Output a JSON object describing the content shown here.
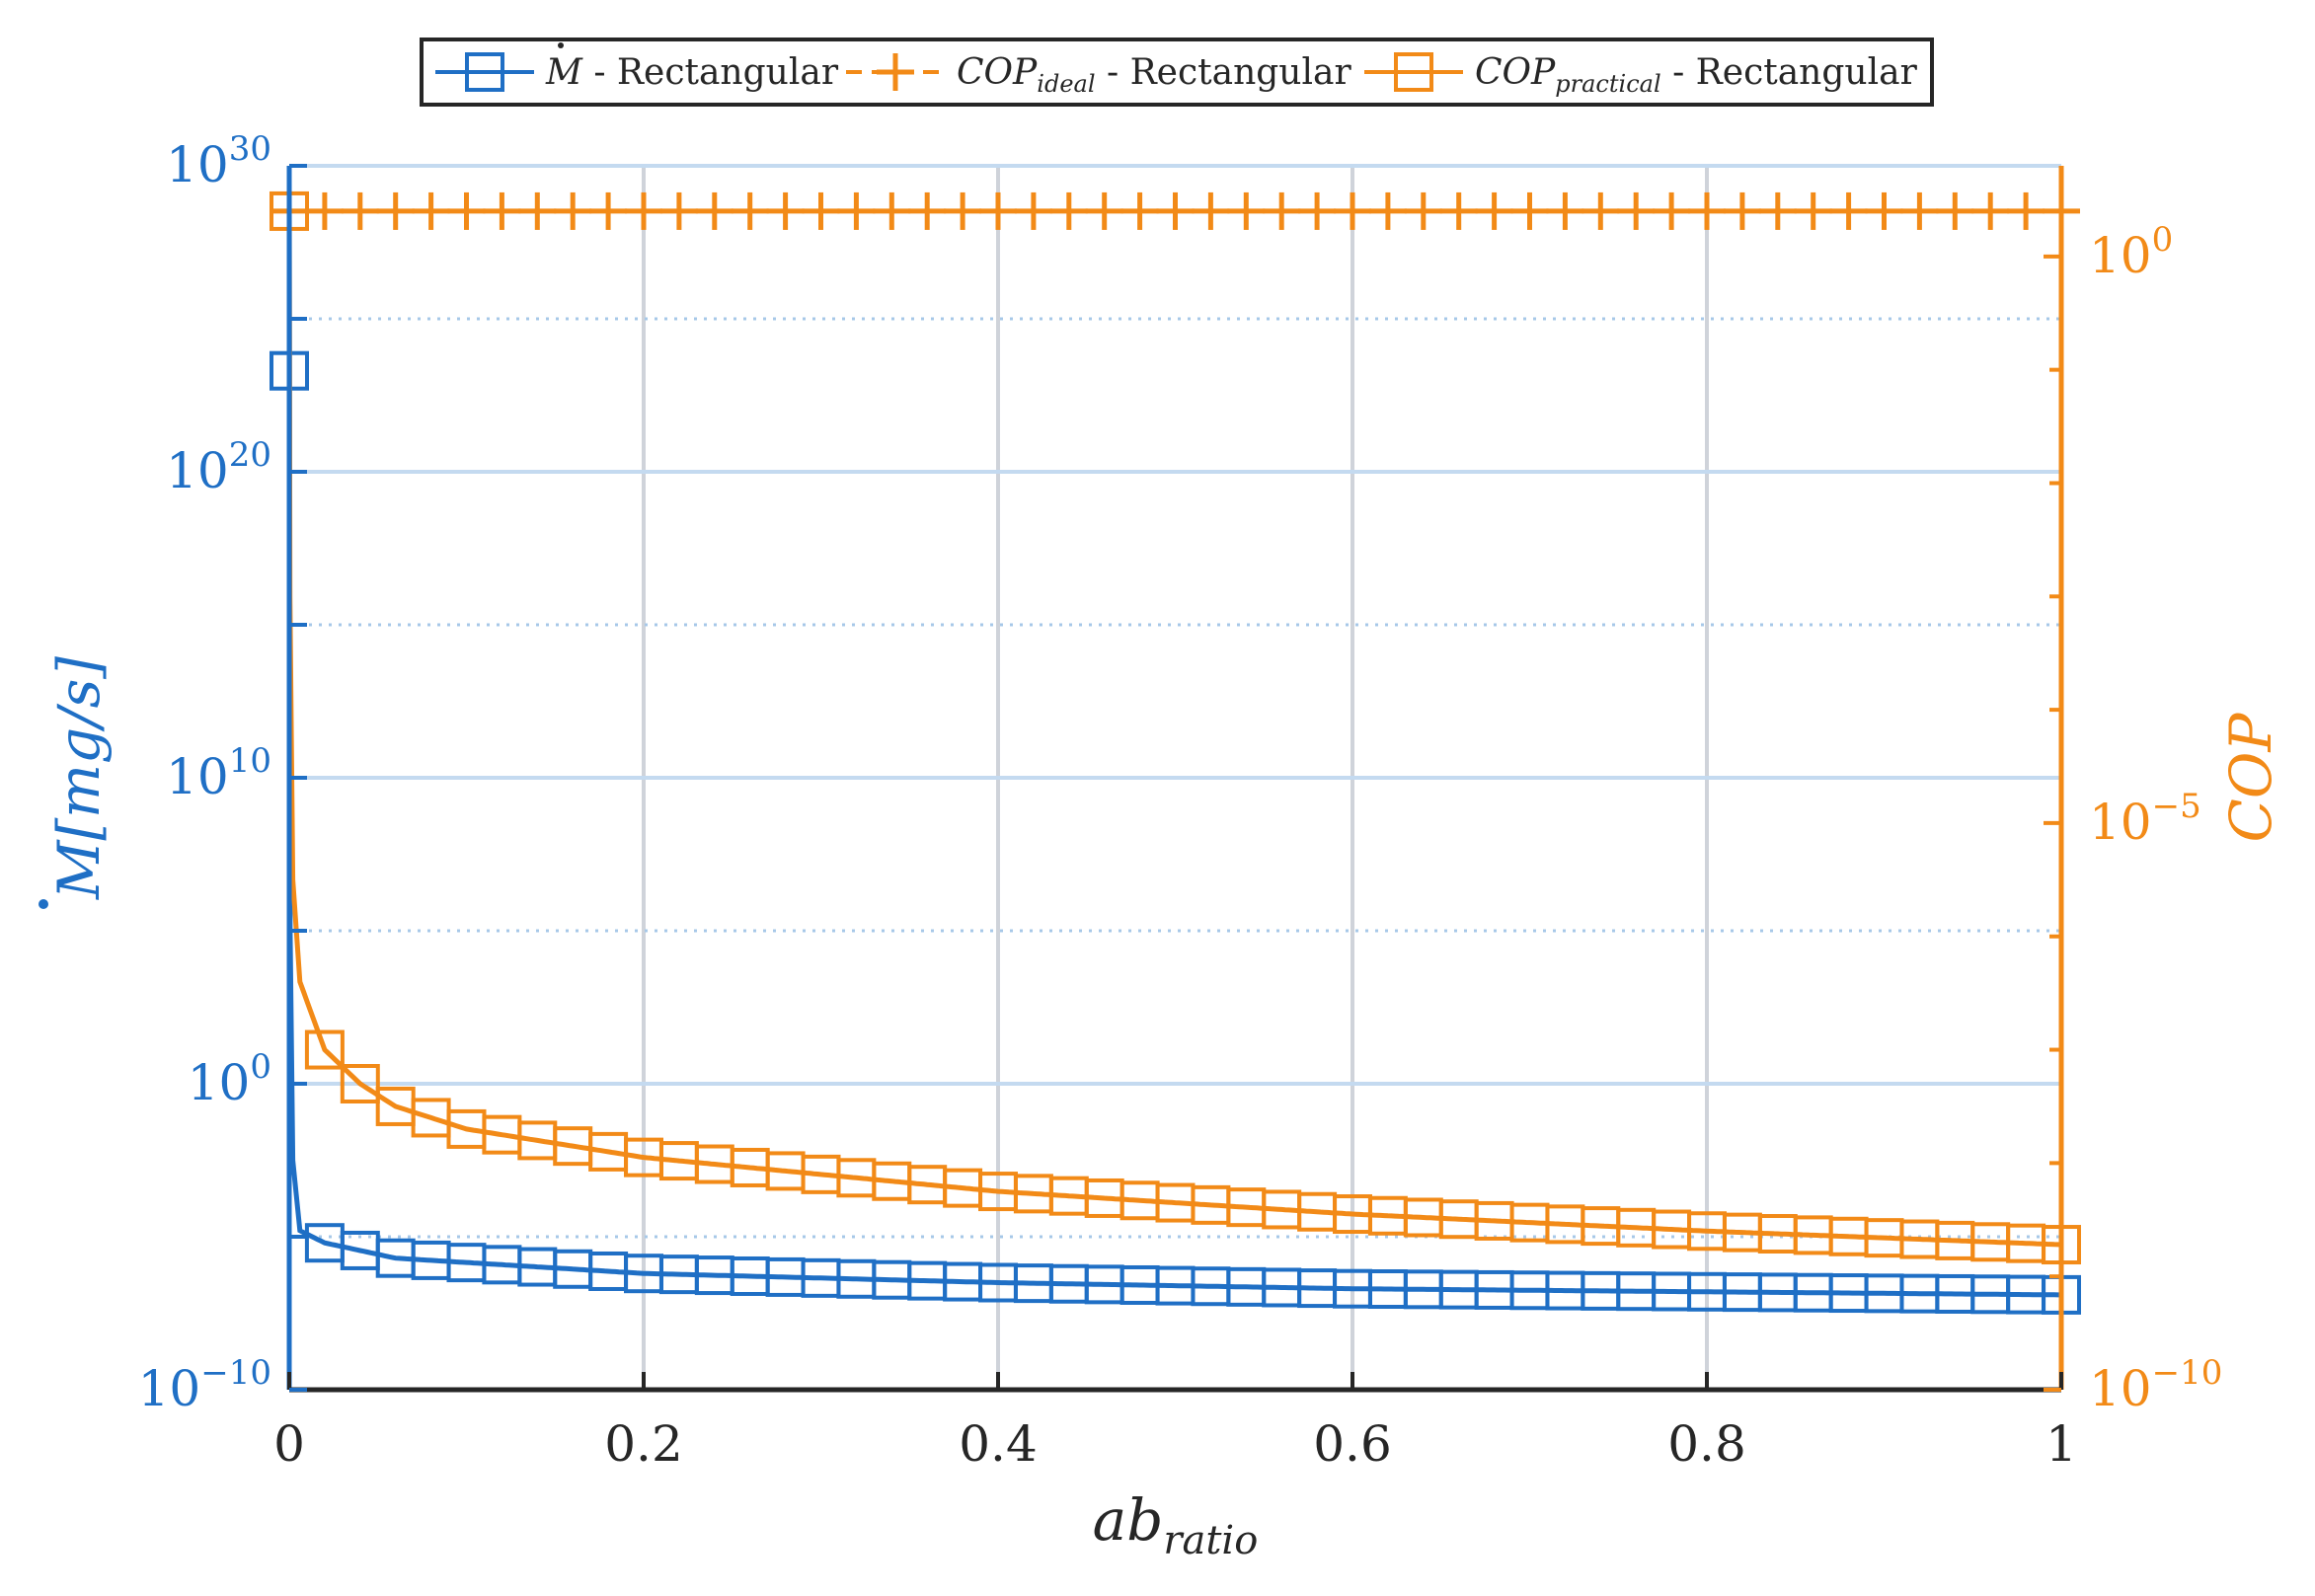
{
  "chart_data": {
    "type": "line",
    "x_axis": {
      "label_main": "ab",
      "label_sub": "ratio",
      "range": [
        0,
        1
      ],
      "ticks": [
        0,
        0.2,
        0.4,
        0.6,
        0.8,
        1
      ],
      "tick_labels": [
        "0",
        "0.2",
        "0.4",
        "0.6",
        "0.8",
        "1"
      ]
    },
    "y_left": {
      "label_symbol": "M",
      "label_unit": "[mg/s]",
      "scale": "log",
      "range_exp": [
        -10,
        30
      ],
      "major_ticks": [
        {
          "base": "10",
          "exp": "30",
          "value_exp": 30
        },
        {
          "base": "10",
          "exp": "20",
          "value_exp": 20
        },
        {
          "base": "10",
          "exp": "10",
          "value_exp": 10
        },
        {
          "base": "10",
          "exp": "0",
          "value_exp": 0
        },
        {
          "base": "10",
          "exp": "−10",
          "value_exp": -10
        }
      ],
      "color": "#1f6fc5"
    },
    "y_right": {
      "label": "COP",
      "scale": "log",
      "range_exp": [
        -10,
        0.8
      ],
      "major_ticks": [
        {
          "base": "10",
          "exp": "0",
          "value_exp": 0
        },
        {
          "base": "10",
          "exp": "−5",
          "value_exp": -5
        },
        {
          "base": "10",
          "exp": "−10",
          "value_exp": -10
        }
      ],
      "color": "#f28a17"
    },
    "grid": true,
    "legend": {
      "placement": "top-center",
      "entries": [
        {
          "symbol": "M",
          "text": " - Rectangular",
          "style": "solid-square",
          "color": "#1f6fc5"
        },
        {
          "symbol": "COP",
          "subscript": "ideal",
          "text": " - Rectangular",
          "style": "dashed-plus",
          "color": "#f28a17"
        },
        {
          "symbol": "COP",
          "subscript": "practical",
          "text": " - Rectangular",
          "style": "solid-square",
          "color": "#f28a17"
        }
      ]
    },
    "series": [
      {
        "name": "M - Rectangular",
        "axis": "left",
        "color": "#1f6fc5",
        "marker": "square",
        "line_points": [
          {
            "x": 0,
            "log10y": 29.5
          },
          {
            "x": 0.0005,
            "log10y": 5.0
          },
          {
            "x": 0.002,
            "log10y": -2.5
          },
          {
            "x": 0.006,
            "log10y": -4.8
          },
          {
            "x": 0.02,
            "log10y": -5.2
          },
          {
            "x": 0.06,
            "log10y": -5.7
          },
          {
            "x": 0.2,
            "log10y": -6.2
          },
          {
            "x": 0.4,
            "log10y": -6.5
          },
          {
            "x": 0.6,
            "log10y": -6.7
          },
          {
            "x": 0.8,
            "log10y": -6.8
          },
          {
            "x": 1.0,
            "log10y": -6.9
          }
        ],
        "extra_markers": [
          {
            "x": 0.0,
            "log10y": 23.3
          }
        ]
      },
      {
        "name": "COP_ideal - Rectangular",
        "axis": "right",
        "color": "#f28a17",
        "marker": "plus",
        "constant_log10y": 0.4
      },
      {
        "name": "COP_practical - Rectangular",
        "axis": "right",
        "color": "#f28a17",
        "marker": "square",
        "line_points": [
          {
            "x": 0,
            "log10y": 0.4
          },
          {
            "x": 0.0004,
            "log10y": -3.0
          },
          {
            "x": 0.002,
            "log10y": -5.5
          },
          {
            "x": 0.006,
            "log10y": -6.4
          },
          {
            "x": 0.02,
            "log10y": -7.0
          },
          {
            "x": 0.04,
            "log10y": -7.3
          },
          {
            "x": 0.06,
            "log10y": -7.5
          },
          {
            "x": 0.1,
            "log10y": -7.7
          },
          {
            "x": 0.2,
            "log10y": -7.95
          },
          {
            "x": 0.4,
            "log10y": -8.25
          },
          {
            "x": 0.6,
            "log10y": -8.45
          },
          {
            "x": 0.8,
            "log10y": -8.6
          },
          {
            "x": 1.0,
            "log10y": -8.72
          }
        ],
        "extra_markers": [
          {
            "x": 0.0,
            "log10y": 0.4
          }
        ]
      }
    ],
    "marker_x_spacing": 0.02
  }
}
